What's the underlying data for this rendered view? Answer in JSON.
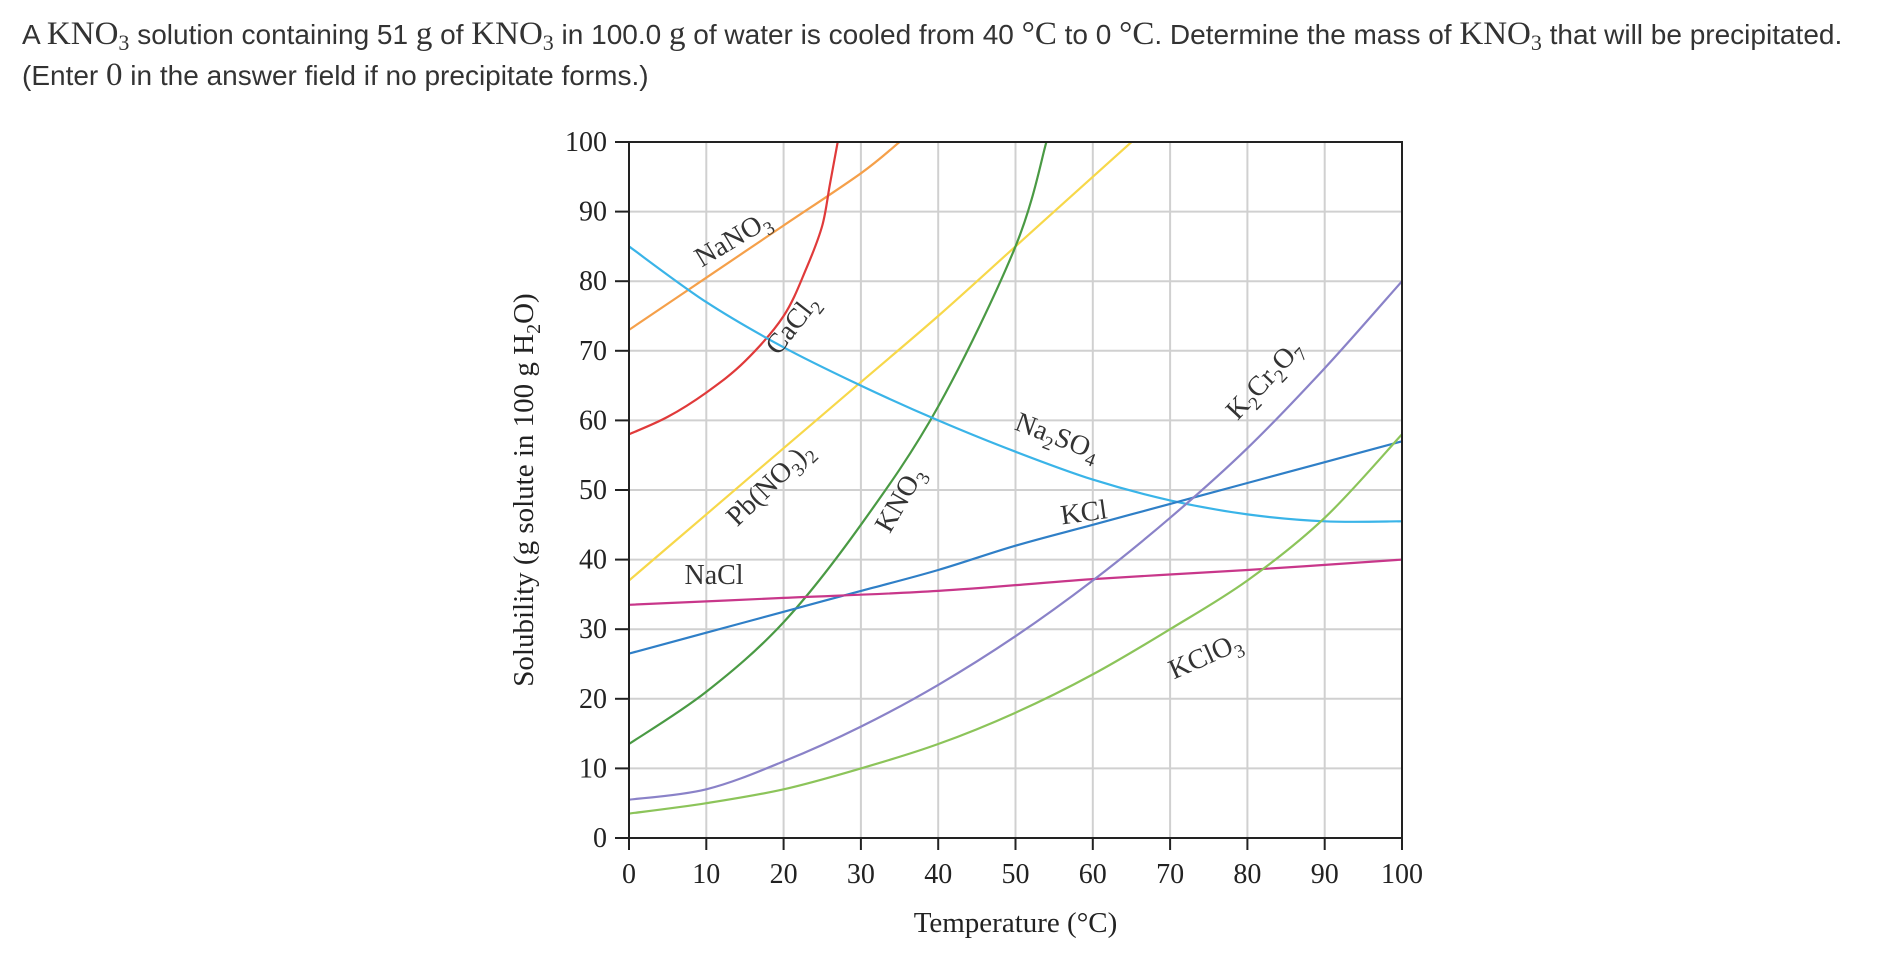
{
  "question": {
    "p1": "A ",
    "m1": "KNO",
    "s1": "3",
    "p2": " solution containing 51 ",
    "m2": "g",
    "p3": " of ",
    "m3": "KNO",
    "s3": "3",
    "p4": " in 100.0 ",
    "m4": "g",
    "p5": " of water is cooled from 40 ",
    "m5": "°C",
    "p6": " to 0 ",
    "m6": "°C",
    "p7": ". Determine the mass of ",
    "m7": "KNO",
    "s7": "3",
    "p8": " that will be precipitated. (Enter ",
    "m8": "0",
    "p9": " in the answer field if no precipitate forms.)"
  },
  "chart_data": {
    "type": "line",
    "xlabel": "Temperature (°C)",
    "ylabel_parts": [
      "Solubility (g solute in 100 g H",
      "2",
      "O)"
    ],
    "xlim": [
      0,
      100
    ],
    "ylim": [
      0,
      100
    ],
    "xticks": [
      0,
      10,
      20,
      30,
      40,
      50,
      60,
      70,
      80,
      90,
      100
    ],
    "yticks": [
      0,
      10,
      20,
      30,
      40,
      50,
      60,
      70,
      80,
      90,
      100
    ],
    "grid": true,
    "series": [
      {
        "name": "NaNO3",
        "label_parts": [
          [
            "Na",
            false
          ],
          [
            "NO",
            false
          ],
          [
            "3",
            true
          ]
        ],
        "color": "#f5a04a",
        "points": [
          [
            0,
            73
          ],
          [
            10,
            80.5
          ],
          [
            20,
            88
          ],
          [
            30,
            95.5
          ],
          [
            35,
            100
          ]
        ]
      },
      {
        "name": "CaCl2",
        "label_parts": [
          [
            "CaCl",
            false
          ],
          [
            "2",
            true
          ]
        ],
        "color": "#e03a3a",
        "points": [
          [
            0,
            58
          ],
          [
            5,
            60.5
          ],
          [
            10,
            64
          ],
          [
            15,
            68.5
          ],
          [
            20,
            75
          ],
          [
            23,
            82
          ],
          [
            25,
            88
          ],
          [
            26,
            94
          ],
          [
            27,
            100
          ]
        ]
      },
      {
        "name": "Pb(NO3)2",
        "label_parts": [
          [
            "Pb(NO",
            false
          ],
          [
            "3",
            true
          ],
          [
            ")",
            false
          ],
          [
            "2",
            true
          ]
        ],
        "color": "#f7d84a",
        "points": [
          [
            0,
            37
          ],
          [
            10,
            46.5
          ],
          [
            20,
            56
          ],
          [
            30,
            65.5
          ],
          [
            40,
            75
          ],
          [
            50,
            85
          ],
          [
            60,
            95
          ],
          [
            65,
            100
          ]
        ]
      },
      {
        "name": "KNO3",
        "label_parts": [
          [
            "KNO",
            false
          ],
          [
            "3",
            true
          ]
        ],
        "color": "#4a9a44",
        "points": [
          [
            0,
            13.5
          ],
          [
            10,
            21
          ],
          [
            20,
            31
          ],
          [
            30,
            45
          ],
          [
            40,
            62
          ],
          [
            50,
            85
          ],
          [
            54,
            100
          ]
        ]
      },
      {
        "name": "Na2SO4",
        "label_parts": [
          [
            "Na",
            false
          ],
          [
            "2",
            true
          ],
          [
            "SO",
            false
          ],
          [
            "4",
            true
          ]
        ],
        "color": "#3ab4e8",
        "points": [
          [
            0,
            85
          ],
          [
            10,
            77
          ],
          [
            20,
            70.5
          ],
          [
            30,
            65
          ],
          [
            40,
            60
          ],
          [
            50,
            55.5
          ],
          [
            60,
            51.5
          ],
          [
            70,
            48.5
          ],
          [
            80,
            46.5
          ],
          [
            90,
            45.5
          ],
          [
            100,
            45.5
          ]
        ]
      },
      {
        "name": "KCl",
        "label_parts": [
          [
            "KCl",
            false
          ]
        ],
        "color": "#2f7fc7",
        "points": [
          [
            0,
            26.5
          ],
          [
            10,
            29.5
          ],
          [
            20,
            32.5
          ],
          [
            30,
            35.5
          ],
          [
            40,
            38.5
          ],
          [
            50,
            42
          ],
          [
            60,
            45
          ],
          [
            70,
            48
          ],
          [
            80,
            51
          ],
          [
            90,
            54
          ],
          [
            100,
            57
          ]
        ]
      },
      {
        "name": "NaCl",
        "label_parts": [
          [
            "NaCl",
            false
          ]
        ],
        "color": "#c8378a",
        "points": [
          [
            0,
            33.5
          ],
          [
            20,
            34.5
          ],
          [
            40,
            35.5
          ],
          [
            60,
            37.2
          ],
          [
            80,
            38.5
          ],
          [
            100,
            40
          ]
        ]
      },
      {
        "name": "K2Cr2O7",
        "label_parts": [
          [
            "K",
            false
          ],
          [
            "2",
            true
          ],
          [
            "Cr",
            false
          ],
          [
            "2",
            true
          ],
          [
            "O",
            false
          ],
          [
            "7",
            true
          ]
        ],
        "color": "#8a82c8",
        "points": [
          [
            0,
            5.5
          ],
          [
            10,
            7
          ],
          [
            20,
            11
          ],
          [
            30,
            16
          ],
          [
            40,
            22
          ],
          [
            50,
            29
          ],
          [
            60,
            37
          ],
          [
            70,
            46
          ],
          [
            80,
            56
          ],
          [
            90,
            67.5
          ],
          [
            100,
            80
          ]
        ]
      },
      {
        "name": "KClO3",
        "label_parts": [
          [
            "KClO",
            false
          ],
          [
            "3",
            true
          ]
        ],
        "color": "#8cc45a",
        "points": [
          [
            0,
            3.5
          ],
          [
            10,
            5
          ],
          [
            20,
            7
          ],
          [
            30,
            10
          ],
          [
            40,
            13.5
          ],
          [
            50,
            18
          ],
          [
            60,
            23.5
          ],
          [
            70,
            30
          ],
          [
            80,
            37
          ],
          [
            90,
            46
          ],
          [
            100,
            58
          ]
        ]
      }
    ]
  }
}
